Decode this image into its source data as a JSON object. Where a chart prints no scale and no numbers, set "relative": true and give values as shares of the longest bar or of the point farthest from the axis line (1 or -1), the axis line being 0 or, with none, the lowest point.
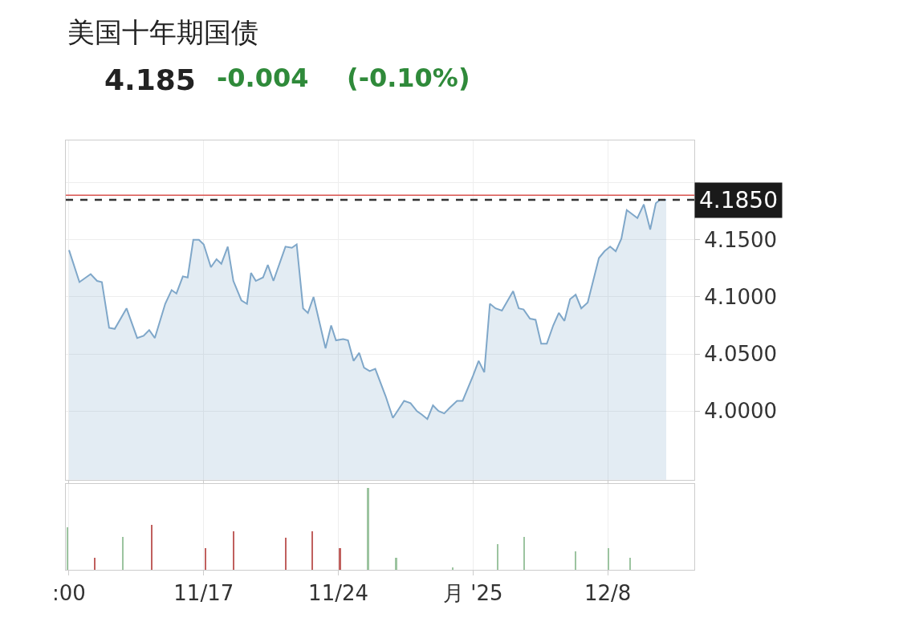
{
  "chart_data": [
    {
      "type": "area",
      "title": "美国十年期国债",
      "subtitle": "4.185",
      "annotations": [
        "-0.004",
        "(-0.10%)"
      ],
      "x": [
        "2025-11-10T00:00",
        "2025-11-10T13:00",
        "2025-11-11T03:00",
        "2025-11-11T11:00",
        "2025-11-11T17:00",
        "2025-11-12T02:00",
        "2025-11-12T09:00",
        "2025-11-12T23:45",
        "2025-11-13T13:00",
        "2025-11-13T21:00",
        "2025-11-14T04:00",
        "2025-11-14T11:00",
        "2025-11-15T00:00",
        "2025-11-15T08:00",
        "2025-11-15T14:00",
        "2025-11-15T22:00",
        "2025-11-16T04:00",
        "2025-11-16T11:00",
        "2025-11-16T18:00",
        "2025-11-17T00:00",
        "2025-11-17T09:00",
        "2025-11-17T16:00",
        "2025-11-17T22:00",
        "2025-11-18T06:00",
        "2025-11-18T13:00",
        "2025-11-18T23:00",
        "2025-11-19T06:00",
        "2025-11-19T11:00",
        "2025-11-19T17:00",
        "2025-11-20T02:00",
        "2025-11-20T08:00",
        "2025-11-20T15:00",
        "2025-11-21T06:00",
        "2025-11-21T14:00",
        "2025-11-21T20:00",
        "2025-11-22T04:00",
        "2025-11-22T10:00",
        "2025-11-22T17:00",
        "2025-11-23T08:00",
        "2025-11-23T15:00",
        "2025-11-23T21:00",
        "2025-11-24T06:00",
        "2025-11-24T12:00",
        "2025-11-24T19:00",
        "2025-11-25T02:00",
        "2025-11-25T08:00",
        "2025-11-25T15:00",
        "2025-11-25T22:00",
        "2025-11-26T11:00",
        "2025-11-26T20:00",
        "2025-11-27T10:00",
        "2025-11-27T18:00",
        "2025-11-28T02:00",
        "2025-11-28T08:00",
        "2025-11-28T15:00",
        "2025-11-28T22:00",
        "2025-11-29T05:00",
        "2025-11-29T12:00",
        "2025-11-29T19:00",
        "2025-11-30T04:00",
        "2025-11-30T11:00",
        "2025-12-01T00:00",
        "2025-12-01T07:00",
        "2025-12-01T14:00",
        "2025-12-01T21:00",
        "2025-12-02T04:00",
        "2025-12-02T12:00",
        "2025-12-03T02:00",
        "2025-12-03T09:00",
        "2025-12-03T15:00",
        "2025-12-03T23:00",
        "2025-12-04T06:00",
        "2025-12-04T13:00",
        "2025-12-04T20:00",
        "2025-12-05T04:00",
        "2025-12-05T11:00",
        "2025-12-05T18:00",
        "2025-12-06T01:00",
        "2025-12-06T08:00",
        "2025-12-06T15:00",
        "2025-12-06T23:00",
        "2025-12-07T13:00",
        "2025-12-07T20:00",
        "2025-12-08T03:00",
        "2025-12-08T10:00",
        "2025-12-08T17:00",
        "2025-12-08T23:45",
        "2025-12-09T13:00",
        "2025-12-09T21:00",
        "2025-12-10T05:00",
        "2025-12-10T12:00",
        "2025-12-10T17:00",
        "2025-12-11T01:00"
      ],
      "series": [
        {
          "color": "#7fa7c9",
          "values": [
            4.141,
            4.113,
            4.12,
            4.114,
            4.113,
            4.073,
            4.072,
            4.09,
            4.064,
            4.066,
            4.071,
            4.064,
            4.094,
            4.106,
            4.103,
            4.118,
            4.117,
            4.15,
            4.15,
            4.146,
            4.126,
            4.133,
            4.129,
            4.144,
            4.114,
            4.097,
            4.094,
            4.121,
            4.114,
            4.117,
            4.128,
            4.114,
            4.144,
            4.143,
            4.146,
            4.09,
            4.086,
            4.1,
            4.055,
            4.075,
            4.062,
            4.063,
            4.062,
            4.044,
            4.051,
            4.038,
            4.035,
            4.037,
            4.013,
            3.994,
            4.009,
            4.007,
            4.0,
            3.997,
            3.993,
            4.005,
            4.0,
            3.998,
            4.003,
            4.009,
            4.009,
            4.031,
            4.044,
            4.034,
            4.094,
            4.09,
            4.088,
            4.105,
            4.09,
            4.089,
            4.081,
            4.08,
            4.059,
            4.059,
            4.075,
            4.086,
            4.079,
            4.098,
            4.102,
            4.09,
            4.095,
            4.134,
            4.14,
            4.144,
            4.14,
            4.151,
            4.176,
            4.169,
            4.181,
            4.159,
            4.182,
            4.185,
            4.185
          ]
        }
      ],
      "xlim": [
        "2025-11-09T20:00",
        "2025-12-12T12:00"
      ],
      "xticks": [
        {
          "value": "2025-11-10",
          "label": null
        },
        {
          "value": "2025-11-17",
          "label": null
        },
        {
          "value": "2025-11-24",
          "label": null
        },
        {
          "value": "2025-12-01",
          "label": null
        },
        {
          "value": "2025-12-08",
          "label": null
        }
      ],
      "ylim": [
        3.94,
        4.237
      ],
      "yticks": [
        {
          "value": 4.0,
          "label": "4.0000"
        },
        {
          "value": 4.05,
          "label": "4.0500"
        },
        {
          "value": 4.1,
          "label": "4.1000"
        },
        {
          "value": 4.15,
          "label": "4.1500"
        },
        {
          "value": 4.2,
          "label": null
        }
      ],
      "ref_lines": [
        {
          "axis": "y",
          "value": 4.189,
          "color": "#d9534f",
          "line_style": "solid"
        },
        {
          "axis": "y",
          "value": 4.185,
          "label": "4.1850",
          "color": "#333333",
          "line_style": "dashed"
        }
      ],
      "grid": true,
      "tick_labels": "y"
    },
    {
      "type": "bar",
      "relative": true,
      "x": [
        "2025-11-09T22:00",
        "2025-11-11T08:00",
        "2025-11-12T19:00",
        "2025-11-14T07:00",
        "2025-11-17T02:00",
        "2025-11-18T13:00",
        "2025-11-21T06:00",
        "2025-11-22T15:00",
        "2025-11-24T02:00",
        "2025-11-25T13:00",
        "2025-11-27T00:00",
        "2025-11-29T23:00",
        "2025-12-02T07:00",
        "2025-12-03T16:00",
        "2025-12-06T08:00",
        "2025-12-08T01:00",
        "2025-12-09T04:00"
      ],
      "values": [
        0.52,
        0.15,
        0.4,
        0.55,
        0.27,
        0.47,
        0.39,
        0.47,
        0.27,
        1,
        0.15,
        0.03,
        0.31,
        0.4,
        0.23,
        0.27,
        0.15
      ],
      "colors": [
        "#9cc4a0",
        "#c0605e",
        "#9cc4a0",
        "#c0605e",
        "#c0605e",
        "#c0605e",
        "#c0605e",
        "#c0605e",
        "#c0605e",
        "#9cc4a0",
        "#9cc4a0",
        "#9cc4a0",
        "#9cc4a0",
        "#9cc4a0",
        "#9cc4a0",
        "#9cc4a0",
        "#9cc4a0"
      ],
      "xlim": [
        "2025-11-09T20:00",
        "2025-12-12T12:00"
      ],
      "xticks": [
        {
          "value": "2025-11-10",
          "label": ":00"
        },
        {
          "value": "2025-11-17",
          "label": "11/17"
        },
        {
          "value": "2025-11-24",
          "label": "11/24"
        },
        {
          "value": "2025-12-01",
          "label": "月 '25"
        },
        {
          "value": "2025-12-08",
          "label": "12/8"
        }
      ],
      "grid": "x"
    }
  ]
}
